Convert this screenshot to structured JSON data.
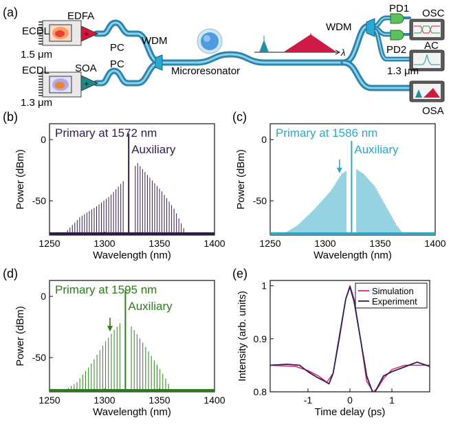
{
  "panel_labels": {
    "a": "(a)",
    "b": "(b)",
    "c": "(c)",
    "d": "(d)",
    "e": "(e)"
  },
  "setup": {
    "ecdl_top": "ECDL",
    "edfa": "EDFA",
    "wl_top": "1.5 μm",
    "ecdl_bottom": "ECDL",
    "soa": "SOA",
    "wl_bottom": "1.3 μm",
    "pc_top": "PC",
    "pc_bottom": "PC",
    "wdm_left": "WDM",
    "microresonator": "Microresonator",
    "lambda": "λ",
    "wdm_right": "WDM",
    "pd1": "PD1",
    "pd2": "PD2",
    "osc": "OSC",
    "ac": "AC",
    "wl_ac": "1.3 μm",
    "osa": "OSA",
    "colors": {
      "fiber": "#2a86ad",
      "fiber_light": "#8fd0ea",
      "edfa": "#d8163c",
      "soa": "#1f8a8a",
      "pd": "#5cc05c",
      "wdm": "#27a9d6",
      "spectrum_teal": "#1f8fa3",
      "spectrum_red": "#d01a46"
    }
  },
  "chart_data": [
    {
      "panel": "b",
      "type": "line",
      "title": "Primary at 1572 nm",
      "annotation": "Auxiliary",
      "xlabel": "Wavelength (nm)",
      "ylabel": "Power (dBm)",
      "xlim": [
        1250,
        1400
      ],
      "ylim": [
        -78,
        13
      ],
      "xticks": [
        1250,
        1300,
        1350,
        1400
      ],
      "yticks": [
        0,
        -50
      ],
      "color": "#2f1b4a",
      "spacing_nm": 2.2,
      "floor_dbm": -78,
      "aux_wavelength_nm": 1322,
      "aux_power_dbm": 5,
      "notch": [
        1318,
        1326
      ],
      "envelope": {
        "x": [
          1262,
          1278,
          1292,
          1305,
          1315,
          1321,
          1330,
          1340,
          1352,
          1363,
          1374
        ],
        "y": [
          -78,
          -63,
          -55,
          -46,
          -36,
          -30,
          -19,
          -30,
          -42,
          -56,
          -76
        ]
      }
    },
    {
      "panel": "c",
      "type": "line",
      "title": "Primary at 1586 nm",
      "annotation": "Auxiliary",
      "xlabel": "Wavelength (nm)",
      "ylabel": "Power (dBm)",
      "xlim": [
        1250,
        1400
      ],
      "ylim": [
        -78,
        13
      ],
      "xticks": [
        1250,
        1300,
        1350,
        1400
      ],
      "yticks": [
        0,
        -50
      ],
      "color": "#2ea6c4",
      "spacing_nm": 1.25,
      "floor_dbm": -78,
      "aux_wavelength_nm": 1324,
      "aux_power_dbm": -1,
      "notch": [
        1320,
        1328
      ],
      "arrow_at_nm": 1313,
      "envelope": {
        "x": [
          1260,
          1275,
          1290,
          1305,
          1315,
          1325,
          1335,
          1345,
          1355,
          1365,
          1372
        ],
        "y": [
          -78,
          -70,
          -57,
          -42,
          -28,
          -22,
          -28,
          -38,
          -54,
          -70,
          -78
        ]
      }
    },
    {
      "panel": "d",
      "type": "line",
      "title": "Primary at 1595 nm",
      "annotation": "Auxiliary",
      "xlabel": "Wavelength (nm)",
      "ylabel": "Power (dBm)",
      "xlim": [
        1250,
        1400
      ],
      "ylim": [
        -78,
        13
      ],
      "xticks": [
        1250,
        1300,
        1350,
        1400
      ],
      "yticks": [
        0,
        -50
      ],
      "color": "#2f7a1f",
      "spacing_nm": 2.6,
      "floor_dbm": -78,
      "aux_wavelength_nm": 1319,
      "aux_power_dbm": 5,
      "notch": [
        1315,
        1323
      ],
      "arrow_at_nm": 1305,
      "envelope": {
        "x": [
          1262,
          1275,
          1288,
          1300,
          1310,
          1316,
          1325,
          1335,
          1345,
          1355,
          1362
        ],
        "y": [
          -78,
          -70,
          -55,
          -38,
          -26,
          -20,
          -25,
          -38,
          -52,
          -66,
          -78
        ]
      }
    },
    {
      "panel": "e",
      "type": "line",
      "xlabel": "Time delay (ps)",
      "ylabel": "Intensity (arb. units)",
      "xlim": [
        -1.9,
        1.9
      ],
      "ylim": [
        0.8,
        1.01
      ],
      "xticks": [
        -1,
        0,
        1
      ],
      "yticks": [
        0.8,
        0.9,
        1.0
      ],
      "legend": "top-right",
      "series": [
        {
          "name": "Simulation",
          "color": "#e0245e",
          "x": [
            -1.9,
            -1.3,
            -1.0,
            -0.75,
            -0.55,
            -0.4,
            -0.25,
            -0.1,
            0,
            0.1,
            0.25,
            0.4,
            0.55,
            0.65,
            0.8,
            1.0,
            1.3,
            1.6,
            1.9
          ],
          "y": [
            0.85,
            0.848,
            0.84,
            0.83,
            0.818,
            0.835,
            0.9,
            0.975,
            1.0,
            0.975,
            0.9,
            0.82,
            0.8,
            0.806,
            0.825,
            0.842,
            0.85,
            0.85,
            0.85
          ]
        },
        {
          "name": "Experiment",
          "color": "#2a1e5c",
          "x": [
            -1.9,
            -1.5,
            -1.2,
            -1.0,
            -0.8,
            -0.6,
            -0.5,
            -0.4,
            -0.25,
            -0.1,
            0,
            0.1,
            0.25,
            0.4,
            0.55,
            0.6,
            0.7,
            0.8,
            1.0,
            1.2,
            1.4,
            1.6,
            1.9
          ],
          "y": [
            0.85,
            0.852,
            0.85,
            0.838,
            0.828,
            0.82,
            0.815,
            0.835,
            0.905,
            0.975,
            0.998,
            0.97,
            0.9,
            0.83,
            0.797,
            0.8,
            0.815,
            0.83,
            0.838,
            0.844,
            0.85,
            0.856,
            0.848
          ]
        }
      ]
    }
  ]
}
